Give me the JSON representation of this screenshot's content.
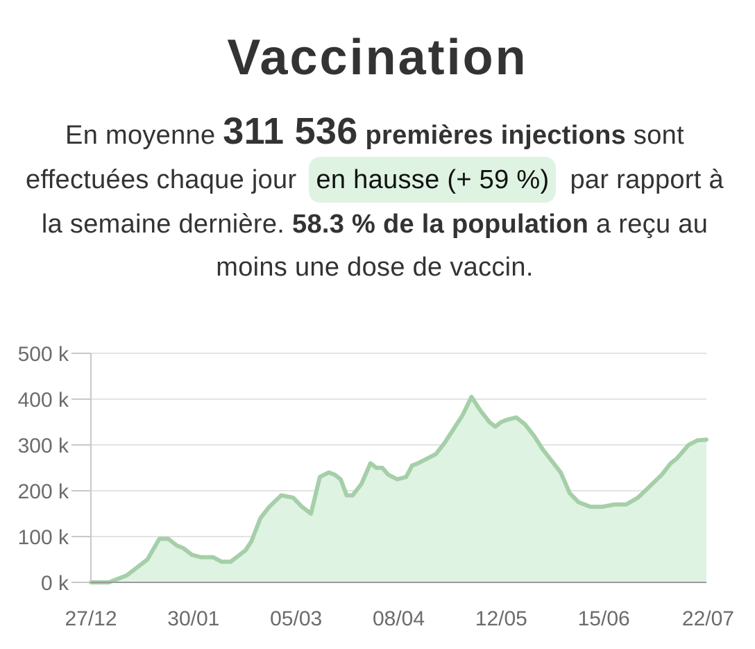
{
  "header": {
    "title": "Vaccination"
  },
  "summary": {
    "part1": "En moyenne",
    "average": "311 536",
    "metric": "premières injections",
    "part2": "sont effectuées chaque jour",
    "trend": "en hausse (+ 59 %)",
    "part3": "par rapport à la semaine dernière.",
    "coverage": "58.3 % de la population",
    "part4": "a reçu au moins une dose de vaccin."
  },
  "colors": {
    "line": "#a5cfa8",
    "fill": "#dff3e2",
    "grid": "#e3e3e3",
    "axis": "#c8c8c8",
    "trend_bg": "#dff3e2"
  },
  "chart_data": {
    "type": "area",
    "x_tick_labels": [
      "27/12",
      "30/01",
      "05/03",
      "08/04",
      "12/05",
      "15/06",
      "22/07"
    ],
    "y_tick_labels": [
      "0 k",
      "100 k",
      "200 k",
      "300 k",
      "400 k",
      "500 k"
    ],
    "y_ticks": [
      0,
      100000,
      200000,
      300000,
      400000,
      500000
    ],
    "ylim": [
      0,
      500000
    ],
    "xlim": [
      "2020-12-27",
      "2021-07-22"
    ],
    "grid": true,
    "series": [
      {
        "x": [
          "2020-12-27",
          "2021-01-02",
          "2021-01-08",
          "2021-01-11",
          "2021-01-15",
          "2021-01-19",
          "2021-01-22",
          "2021-01-25",
          "2021-01-27",
          "2021-01-30",
          "2021-02-02",
          "2021-02-04",
          "2021-02-06",
          "2021-02-09",
          "2021-02-12",
          "2021-02-15",
          "2021-02-17",
          "2021-02-19",
          "2021-02-22",
          "2021-02-25",
          "2021-03-01",
          "2021-03-05",
          "2021-03-08",
          "2021-03-11",
          "2021-03-14",
          "2021-03-17",
          "2021-03-19",
          "2021-03-21",
          "2021-03-23",
          "2021-03-25",
          "2021-03-28",
          "2021-03-31",
          "2021-04-02",
          "2021-04-04",
          "2021-04-06",
          "2021-04-09",
          "2021-04-12",
          "2021-04-14",
          "2021-04-16",
          "2021-04-19",
          "2021-04-22",
          "2021-04-25",
          "2021-04-28",
          "2021-05-01",
          "2021-05-04",
          "2021-05-07",
          "2021-05-10",
          "2021-05-12",
          "2021-05-14",
          "2021-05-16",
          "2021-05-19",
          "2021-05-22",
          "2021-05-25",
          "2021-05-28",
          "2021-05-31",
          "2021-06-03",
          "2021-06-06",
          "2021-06-09",
          "2021-06-13",
          "2021-06-17",
          "2021-06-21",
          "2021-06-25",
          "2021-06-29",
          "2021-07-03",
          "2021-07-07",
          "2021-07-10",
          "2021-07-12",
          "2021-07-14",
          "2021-07-16",
          "2021-07-19",
          "2021-07-22"
        ],
        "y": [
          0,
          0,
          15000,
          30000,
          50000,
          95000,
          95000,
          80000,
          75000,
          60000,
          55000,
          55000,
          55000,
          45000,
          45000,
          60000,
          70000,
          90000,
          140000,
          165000,
          190000,
          185000,
          165000,
          150000,
          230000,
          240000,
          235000,
          225000,
          190000,
          190000,
          215000,
          260000,
          250000,
          250000,
          235000,
          225000,
          230000,
          255000,
          260000,
          270000,
          280000,
          305000,
          335000,
          365000,
          405000,
          375000,
          350000,
          340000,
          350000,
          355000,
          360000,
          345000,
          320000,
          290000,
          265000,
          240000,
          195000,
          175000,
          165000,
          165000,
          170000,
          170000,
          185000,
          210000,
          235000,
          260000,
          270000,
          285000,
          300000,
          310000,
          311536
        ]
      }
    ]
  }
}
